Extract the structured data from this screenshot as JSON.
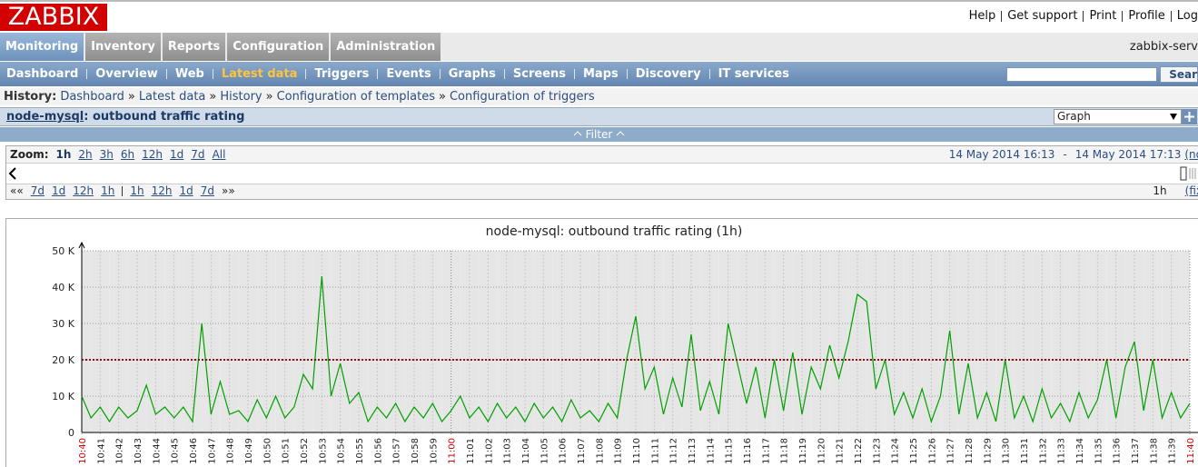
{
  "header": {
    "logo": "ZABBIX",
    "links": [
      "Help",
      "Get support",
      "Print",
      "Profile",
      "Log"
    ]
  },
  "main_menu": {
    "items": [
      "Monitoring",
      "Inventory",
      "Reports",
      "Configuration",
      "Administration"
    ],
    "active": 0,
    "server": "zabbix-serv"
  },
  "sub_menu": {
    "items": [
      "Dashboard",
      "Overview",
      "Web",
      "Latest data",
      "Triggers",
      "Events",
      "Graphs",
      "Screens",
      "Maps",
      "Discovery",
      "IT services"
    ],
    "active": 3,
    "search_button": "Sear"
  },
  "history": {
    "label": "History:",
    "separator": "»",
    "items": [
      "Dashboard",
      "Latest data",
      "History",
      "Configuration of templates",
      "Configuration of triggers"
    ]
  },
  "title_bar": {
    "host": "node-mysql",
    "title": ": outbound traffic rating",
    "select": "Graph"
  },
  "filter": {
    "label": "Filter"
  },
  "zoom": {
    "label": "Zoom:",
    "items": [
      "1h",
      "2h",
      "3h",
      "6h",
      "12h",
      "1d",
      "7d",
      "All"
    ],
    "active": 0,
    "period": {
      "from": "14 May 2014 16:13",
      "separator": "-",
      "to": "14 May 2014 17:13",
      "link": "(no"
    },
    "nav": {
      "back": "««",
      "back_items": [
        "7d",
        "1d",
        "12h",
        "1h"
      ],
      "fwd_items": [
        "1h",
        "12h",
        "1d",
        "7d"
      ],
      "fwd": "»»",
      "period": "1h",
      "fixed": "(fix"
    }
  },
  "chart_data": {
    "type": "line",
    "title": "node-mysql: outbound traffic rating (1h)",
    "categories": [
      "10:40",
      null,
      "10:41",
      null,
      "10:42",
      null,
      "10:43",
      null,
      "10:44",
      null,
      "10:45",
      null,
      "10:46",
      null,
      "10:47",
      null,
      "10:48",
      null,
      "10:49",
      null,
      "10:50",
      null,
      "10:51",
      null,
      "10:52",
      null,
      "10:53",
      null,
      "10:54",
      null,
      "10:55",
      null,
      "10:56",
      null,
      "10:57",
      null,
      "10:58",
      null,
      "10:59",
      null,
      "11:00",
      null,
      "11:01",
      null,
      "11:02",
      null,
      "11:03",
      null,
      "11:04",
      null,
      "11:05",
      null,
      "11:06",
      null,
      "11:07",
      null,
      "11:08",
      null,
      "11:09",
      null,
      "11:10",
      null,
      "11:11",
      null,
      "11:12",
      null,
      "11:13",
      null,
      "11:14",
      null,
      "11:15",
      null,
      "11:16",
      null,
      "11:17",
      null,
      "11:18",
      null,
      "11:19",
      null,
      "11:20",
      null,
      "11:21",
      null,
      "11:22",
      null,
      "11:23",
      null,
      "11:24",
      null,
      "11:25",
      null,
      "11:26",
      null,
      "11:27",
      null,
      "11:28",
      null,
      "11:29",
      null,
      "11:30",
      null,
      "11:31",
      null,
      "11:32",
      null,
      "11:33",
      null,
      "11:34",
      null,
      "11:35",
      null,
      "11:36",
      null,
      "11:37",
      null,
      "11:38",
      null,
      "11:39",
      null,
      "11:40"
    ],
    "major_ticks": [
      0,
      40,
      120
    ],
    "major_tick_color": "#cc0000",
    "series": [
      {
        "color": "#00a000",
        "values": [
          10000,
          4000,
          7000,
          3000,
          7000,
          4000,
          6000,
          13000,
          5000,
          7000,
          4000,
          7000,
          3000,
          30000,
          5000,
          14000,
          5000,
          6000,
          3000,
          9000,
          4000,
          10000,
          4000,
          7000,
          16000,
          12000,
          43000,
          10000,
          19000,
          8000,
          11000,
          3000,
          7000,
          4000,
          8000,
          3000,
          7000,
          4000,
          8000,
          3000,
          6000,
          10000,
          4000,
          7000,
          3000,
          8000,
          4000,
          7000,
          3000,
          8000,
          4000,
          7000,
          3000,
          9000,
          4000,
          6000,
          3000,
          8000,
          4000,
          20000,
          32000,
          12000,
          18000,
          5000,
          15000,
          7000,
          27000,
          6000,
          14000,
          5000,
          30000,
          19000,
          8000,
          18000,
          4000,
          20000,
          6000,
          22000,
          5000,
          18000,
          12000,
          24000,
          15000,
          25000,
          38000,
          36000,
          12000,
          20000,
          5000,
          11000,
          4000,
          12000,
          3000,
          10000,
          28000,
          5000,
          19000,
          4000,
          11000,
          3000,
          20000,
          4000,
          10000,
          3000,
          12000,
          4000,
          8000,
          3000,
          11000,
          4000,
          9000,
          20000,
          4000,
          18000,
          25000,
          6000,
          20000,
          4000,
          11000,
          4000,
          8000
        ]
      }
    ],
    "trigger_line": {
      "value": 20000,
      "color": "#8b1010"
    },
    "ylim": [
      0,
      50000
    ],
    "yticks": [
      0,
      {
        "value": 10000,
        "label": "10 K"
      },
      {
        "value": 20000,
        "label": "20 K"
      },
      {
        "value": 30000,
        "label": "30 K"
      },
      {
        "value": 40000,
        "label": "40 K"
      },
      {
        "value": 50000,
        "label": "50 K"
      }
    ],
    "grid": true
  }
}
